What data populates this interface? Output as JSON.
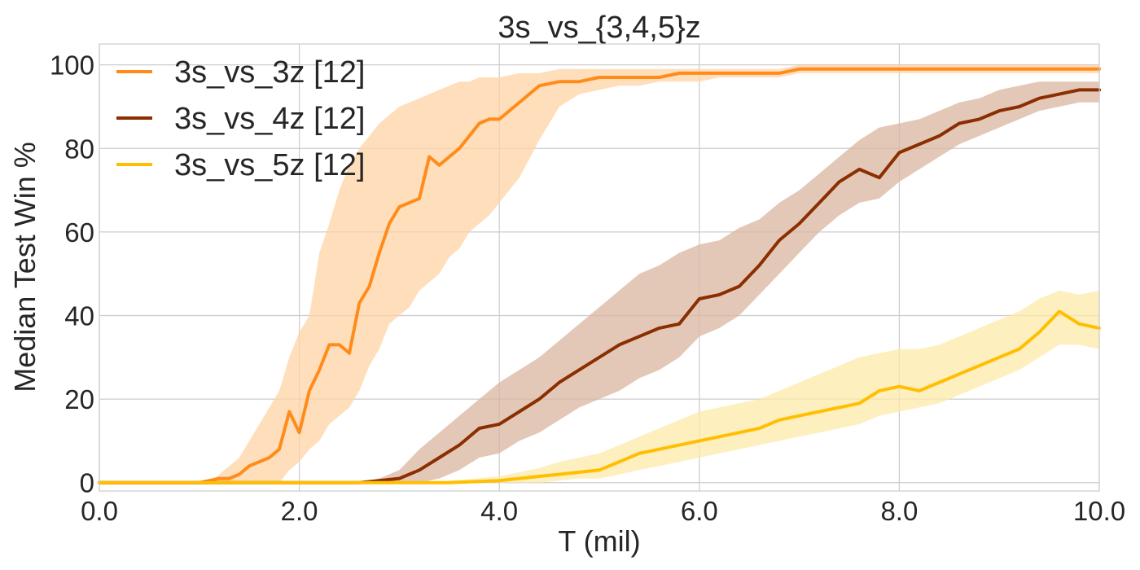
{
  "chart_data": {
    "type": "line",
    "title": "3s_vs_{3,4,5}z",
    "xlabel": "T (mil)",
    "ylabel": "Median Test Win %",
    "xlim": [
      0,
      10
    ],
    "ylim": [
      -2,
      105
    ],
    "xticks": [
      0,
      2,
      4,
      6,
      8,
      10
    ],
    "xtick_labels": [
      "0.0",
      "2.0",
      "4.0",
      "6.0",
      "8.0",
      "10.0"
    ],
    "yticks": [
      0,
      20,
      40,
      60,
      80,
      100
    ],
    "ytick_labels": [
      "0",
      "20",
      "40",
      "60",
      "80",
      "100"
    ],
    "grid": true,
    "legend_position": "top-left",
    "series": [
      {
        "name": "3s_vs_3z [12]",
        "color": "#ff8c1a",
        "band_color": "#ffd3a6",
        "x": [
          0,
          0.5,
          1.0,
          1.1,
          1.2,
          1.3,
          1.4,
          1.5,
          1.6,
          1.7,
          1.8,
          1.9,
          2.0,
          2.1,
          2.2,
          2.3,
          2.4,
          2.5,
          2.6,
          2.7,
          2.8,
          2.9,
          3.0,
          3.1,
          3.2,
          3.3,
          3.4,
          3.5,
          3.6,
          3.7,
          3.8,
          3.9,
          4.0,
          4.2,
          4.4,
          4.6,
          4.8,
          5.0,
          5.2,
          5.4,
          5.6,
          5.8,
          6.0,
          6.2,
          6.4,
          6.6,
          6.8,
          7.0,
          7.5,
          8.0,
          8.5,
          9.0,
          9.5,
          10.0
        ],
        "y": [
          0,
          0,
          0,
          0.5,
          1,
          1,
          2,
          4,
          5,
          6,
          8,
          17,
          12,
          22,
          27,
          33,
          33,
          31,
          43,
          47,
          55,
          62,
          66,
          67,
          68,
          78,
          76,
          78,
          80,
          83,
          86,
          87,
          87,
          91,
          95,
          96,
          96,
          97,
          97,
          97,
          97,
          98,
          98,
          98,
          98,
          98,
          98,
          99,
          99,
          99,
          99,
          99,
          99,
          99
        ],
        "lower": [
          0,
          0,
          0,
          0,
          0,
          0,
          0,
          0,
          0,
          0,
          0,
          3,
          5,
          8,
          10,
          14,
          16,
          18,
          22,
          28,
          32,
          38,
          40,
          42,
          46,
          48,
          50,
          54,
          56,
          60,
          62,
          64,
          67,
          73,
          82,
          90,
          93,
          94,
          95,
          95,
          96,
          96,
          96,
          97,
          97,
          97,
          97,
          98,
          98,
          98,
          98,
          98,
          98,
          98
        ],
        "upper": [
          0,
          0,
          0,
          0,
          2,
          4,
          6,
          10,
          14,
          18,
          22,
          30,
          36,
          40,
          55,
          62,
          70,
          76,
          80,
          83,
          86,
          88,
          90,
          91,
          92,
          93,
          94,
          95,
          96,
          96,
          97,
          97,
          97,
          98,
          98,
          99,
          99,
          99,
          99,
          99,
          99,
          99,
          99,
          99,
          99,
          99,
          99,
          100,
          100,
          100,
          100,
          100,
          100,
          100
        ]
      },
      {
        "name": "3s_vs_4z [12]",
        "color": "#8b2e00",
        "band_color": "#d9b5a0",
        "x": [
          0,
          1.0,
          2.0,
          2.6,
          2.8,
          3.0,
          3.2,
          3.4,
          3.6,
          3.8,
          4.0,
          4.2,
          4.4,
          4.6,
          4.8,
          5.0,
          5.2,
          5.4,
          5.6,
          5.8,
          6.0,
          6.2,
          6.4,
          6.6,
          6.8,
          7.0,
          7.2,
          7.4,
          7.6,
          7.8,
          8.0,
          8.2,
          8.4,
          8.6,
          8.8,
          9.0,
          9.2,
          9.4,
          9.6,
          9.8,
          10.0
        ],
        "y": [
          0,
          0,
          0,
          0,
          0.5,
          1,
          3,
          6,
          9,
          13,
          14,
          17,
          20,
          24,
          27,
          30,
          33,
          35,
          37,
          38,
          44,
          45,
          47,
          52,
          58,
          62,
          67,
          72,
          75,
          73,
          79,
          81,
          83,
          86,
          87,
          89,
          90,
          92,
          93,
          94,
          94
        ],
        "lower": [
          0,
          0,
          0,
          0,
          0,
          0,
          0,
          1,
          3,
          6,
          7,
          10,
          12,
          15,
          18,
          20,
          22,
          25,
          27,
          30,
          35,
          37,
          40,
          45,
          50,
          55,
          60,
          64,
          67,
          68,
          72,
          75,
          78,
          81,
          83,
          85,
          87,
          89,
          90,
          91,
          91
        ],
        "upper": [
          0,
          0,
          0,
          0,
          1,
          3,
          8,
          12,
          16,
          20,
          24,
          27,
          30,
          34,
          38,
          42,
          46,
          50,
          52,
          55,
          57,
          58,
          61,
          63,
          67,
          70,
          74,
          78,
          82,
          85,
          86,
          87,
          89,
          91,
          92,
          94,
          95,
          96,
          96,
          96,
          96
        ]
      },
      {
        "name": "3s_vs_5z [12]",
        "color": "#ffbf00",
        "band_color": "#fde9a8",
        "x": [
          0,
          1.0,
          2.0,
          3.0,
          3.5,
          4.0,
          4.2,
          4.4,
          4.6,
          4.8,
          5.0,
          5.2,
          5.4,
          5.6,
          5.8,
          6.0,
          6.2,
          6.4,
          6.6,
          6.8,
          7.0,
          7.2,
          7.4,
          7.6,
          7.8,
          8.0,
          8.2,
          8.4,
          8.6,
          8.8,
          9.0,
          9.2,
          9.4,
          9.6,
          9.8,
          10.0
        ],
        "y": [
          0,
          0,
          0,
          0,
          0,
          0.5,
          1,
          1.5,
          2,
          2.5,
          3,
          5,
          7,
          8,
          9,
          10,
          11,
          12,
          13,
          15,
          16,
          17,
          18,
          19,
          22,
          23,
          22,
          24,
          26,
          28,
          30,
          32,
          36,
          41,
          38,
          37
        ],
        "lower": [
          0,
          0,
          0,
          0,
          0,
          0,
          0,
          0,
          0.5,
          1,
          1,
          2,
          3,
          4,
          5,
          6,
          7,
          8,
          9,
          10,
          11,
          12,
          13,
          14,
          16,
          17,
          18,
          19,
          21,
          23,
          25,
          27,
          30,
          33,
          33,
          32
        ],
        "upper": [
          0,
          0,
          0,
          0,
          0.5,
          1.5,
          2.5,
          3.5,
          5,
          6,
          7,
          9,
          11,
          13,
          15,
          17,
          18,
          19,
          20,
          22,
          24,
          26,
          28,
          30,
          31,
          32,
          32,
          33,
          35,
          37,
          39,
          41,
          44,
          46,
          45,
          46
        ]
      }
    ]
  }
}
